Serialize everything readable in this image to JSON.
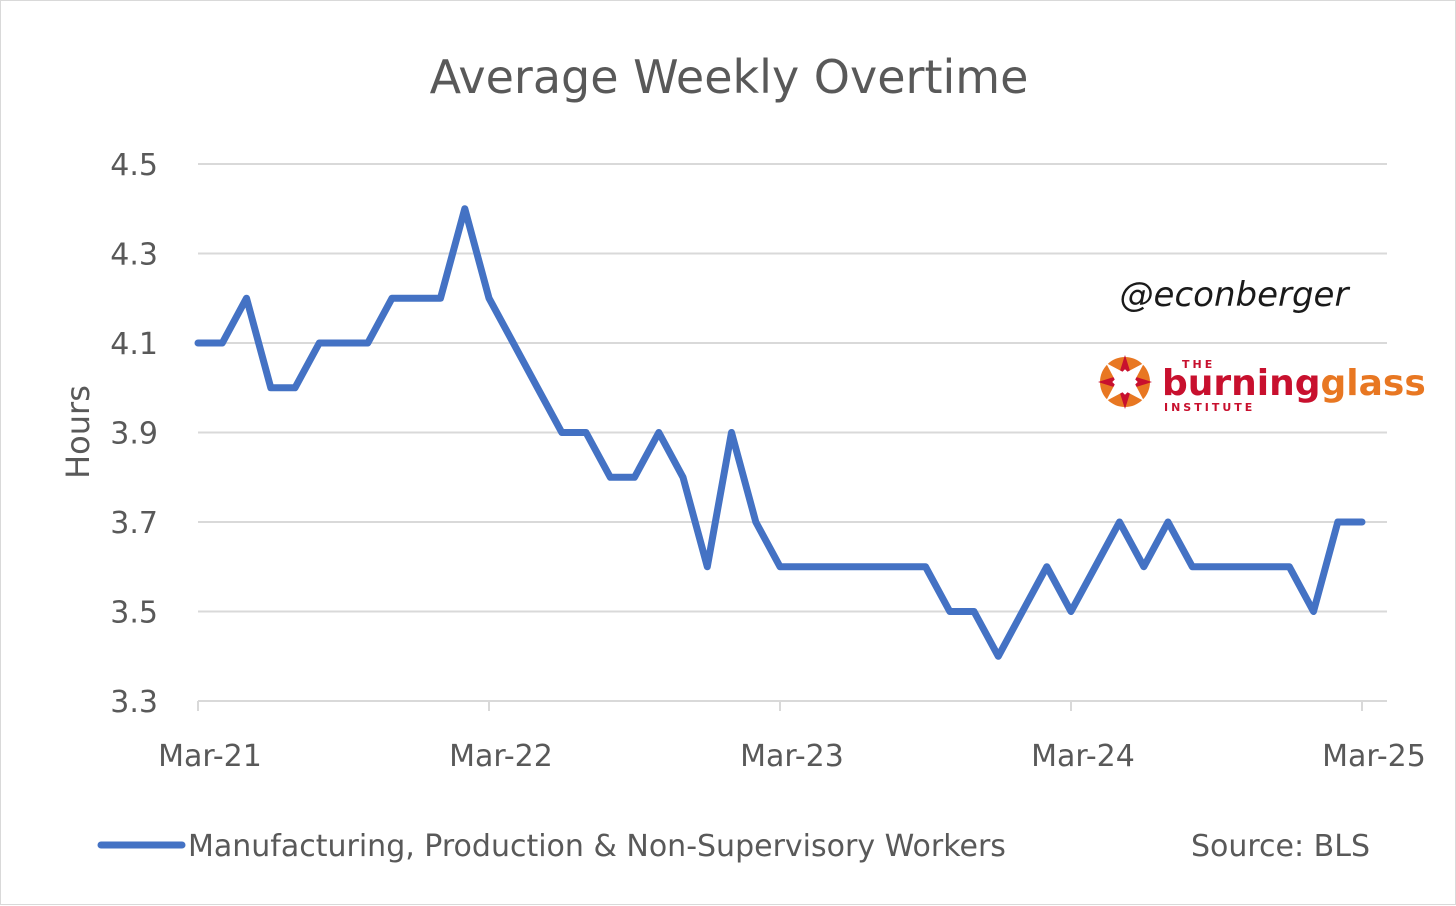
{
  "chart_data": {
    "type": "line",
    "title": "Average Weekly Overtime",
    "ylabel": "Hours",
    "xlabel": "",
    "ylim": [
      3.3,
      4.5
    ],
    "yticks": [
      "4.5",
      "4.3",
      "4.1",
      "3.9",
      "3.7",
      "3.5",
      "3.3"
    ],
    "ytick_values": [
      4.5,
      4.3,
      4.1,
      3.9,
      3.7,
      3.5,
      3.3
    ],
    "xlim": [
      "Mar-21",
      "Mar-25"
    ],
    "xticks": [
      "Mar-21",
      "Mar-22",
      "Mar-23",
      "Mar-24",
      "Mar-25"
    ],
    "grid": true,
    "legend_position": "bottom",
    "series": [
      {
        "name": "Manufacturing, Production & Non-Supervisory Workers",
        "color": "#4472c4",
        "x": [
          "Mar-21",
          "Apr-21",
          "May-21",
          "Jun-21",
          "Jul-21",
          "Aug-21",
          "Sep-21",
          "Oct-21",
          "Nov-21",
          "Dec-21",
          "Jan-22",
          "Feb-22",
          "Mar-22",
          "Apr-22",
          "May-22",
          "Jun-22",
          "Jul-22",
          "Aug-22",
          "Sep-22",
          "Oct-22",
          "Nov-22",
          "Dec-22",
          "Jan-23",
          "Feb-23",
          "Mar-23",
          "Apr-23",
          "May-23",
          "Jun-23",
          "Jul-23",
          "Aug-23",
          "Sep-23",
          "Oct-23",
          "Nov-23",
          "Dec-23",
          "Jan-24",
          "Feb-24",
          "Mar-24",
          "Apr-24",
          "May-24",
          "Jun-24",
          "Jul-24",
          "Aug-24",
          "Sep-24",
          "Oct-24",
          "Nov-24",
          "Dec-24",
          "Jan-25",
          "Feb-25",
          "Mar-25"
        ],
        "values": [
          4.1,
          4.1,
          4.2,
          4.0,
          4.0,
          4.1,
          4.1,
          4.1,
          4.2,
          4.2,
          4.2,
          4.4,
          4.2,
          4.1,
          4.0,
          3.9,
          3.9,
          3.8,
          3.8,
          3.9,
          3.8,
          3.6,
          3.9,
          3.7,
          3.6,
          3.6,
          3.6,
          3.6,
          3.6,
          3.6,
          3.6,
          3.5,
          3.5,
          3.4,
          3.5,
          3.6,
          3.5,
          3.6,
          3.7,
          3.6,
          3.7,
          3.6,
          3.6,
          3.6,
          3.6,
          3.6,
          3.5,
          3.7,
          3.7
        ]
      }
    ]
  },
  "annotations": {
    "handle": "@econberger",
    "source": "Source: BLS",
    "logo": {
      "small_top": "THE",
      "main_left": "burning",
      "main_right": "glass",
      "small_bottom": "INSTITUTE",
      "color_red": "#c8102e",
      "color_orange": "#e87722"
    }
  },
  "colors": {
    "line": "#4472c4",
    "text": "#595959",
    "grid": "#d9d9d9"
  }
}
